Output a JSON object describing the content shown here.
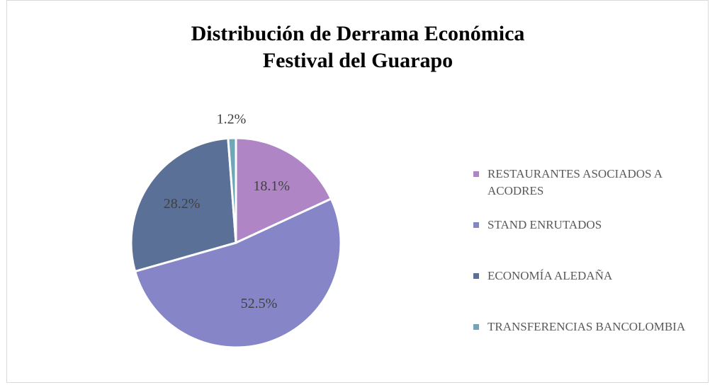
{
  "chart_data": {
    "type": "pie",
    "title": [
      "Distribución de Derrama Económica",
      "Festival del Guarapo"
    ],
    "categories": [
      "RESTAURANTES ASOCIADOS A ACODRES",
      "STAND ENRUTADOS",
      "ECONOMÍA ALEDAÑA",
      "TRANSFERENCIAS BANCOLOMBIA"
    ],
    "values": [
      18.1,
      52.5,
      28.2,
      1.2
    ],
    "value_labels": [
      "18.1%",
      "52.5%",
      "28.2%",
      "1.2%"
    ],
    "colors": [
      "#b085c6",
      "#8585c8",
      "#5a7096",
      "#6fa7b6"
    ],
    "legend": "right"
  }
}
